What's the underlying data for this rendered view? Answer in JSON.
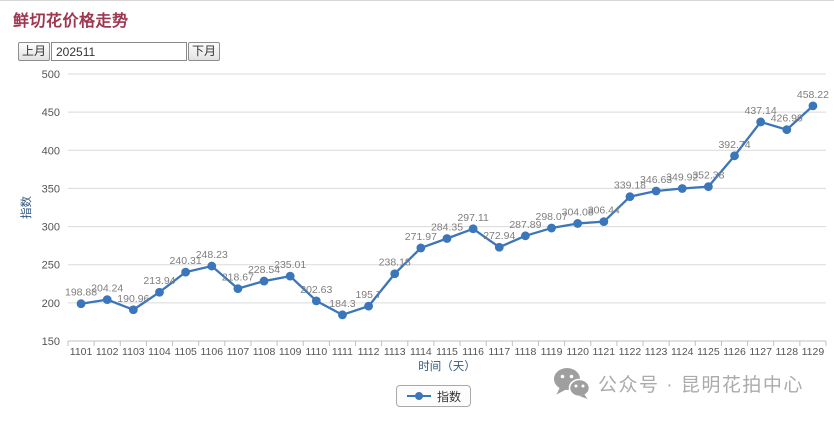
{
  "header": {
    "title": "鲜切花价格走势"
  },
  "controls": {
    "prev_button": "上月",
    "month_input_value": "202511",
    "next_button": "下月"
  },
  "chart_data": {
    "type": "line",
    "x": [
      "1101",
      "1102",
      "1103",
      "1104",
      "1105",
      "1106",
      "1107",
      "1108",
      "1109",
      "1110",
      "1111",
      "1112",
      "1113",
      "1114",
      "1115",
      "1116",
      "1117",
      "1118",
      "1119",
      "1120",
      "1121",
      "1122",
      "1123",
      "1124",
      "1125",
      "1126",
      "1127",
      "1128",
      "1129"
    ],
    "series": [
      {
        "name": "指数",
        "values": [
          198.88,
          204.24,
          190.96,
          213.94,
          240.31,
          248.23,
          218.67,
          228.54,
          235.01,
          202.63,
          184.3,
          195.7,
          238.18,
          271.97,
          284.35,
          297.11,
          272.94,
          287.89,
          298.07,
          304.08,
          306.44,
          339.18,
          346.63,
          349.92,
          352.38,
          392.74,
          437.14,
          426.99,
          458.22
        ]
      }
    ],
    "xlabel": "时间（天）",
    "ylabel": "指数",
    "ylim": [
      150,
      500
    ],
    "ytick_interval": 50,
    "yticks": [
      150,
      200,
      250,
      300,
      350,
      400,
      450,
      500
    ],
    "grid": true,
    "legend_position": "bottom",
    "colors": {
      "line": "#3b76ba",
      "point": "#3b76ba",
      "point_label": "#7e7e7e",
      "axis_text": "#555555",
      "axis_title": "#31597f",
      "grid_line": "#dadada",
      "axis_line": "#c0c0c0"
    }
  },
  "legend": {
    "label": "指数"
  },
  "watermark": {
    "icon": "wechat-icon",
    "text": "公众号 · 昆明花拍中心"
  }
}
